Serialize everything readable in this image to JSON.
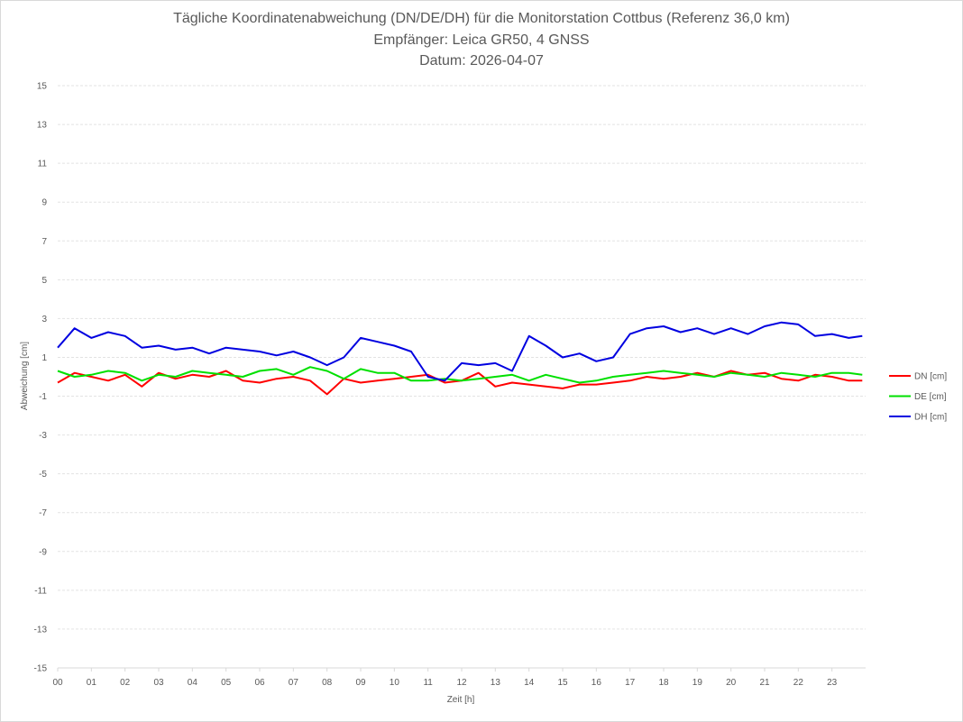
{
  "chart_data": {
    "type": "line",
    "title": "Tägliche Koordinatenabweichung (DN/DE/DH) für die Monitorstation Cottbus (Referenz 36,0 km)",
    "subtitle": "Empfänger: Leica GR50, 4 GNSS",
    "date_line": "Datum: 2026-04-07",
    "xlabel": "Zeit [h]",
    "ylabel": "Abweichung [cm]",
    "xlim": [
      0,
      24
    ],
    "ylim": [
      -15,
      15
    ],
    "x_ticks": [
      "00",
      "01",
      "02",
      "03",
      "04",
      "05",
      "06",
      "07",
      "08",
      "09",
      "10",
      "11",
      "12",
      "13",
      "14",
      "15",
      "16",
      "17",
      "18",
      "19",
      "20",
      "21",
      "22",
      "23"
    ],
    "y_ticks": [
      15,
      13,
      11,
      9,
      7,
      5,
      3,
      1,
      -1,
      -3,
      -5,
      -7,
      -9,
      -11,
      -13,
      -15
    ],
    "grid": true,
    "legend_position": "right",
    "x": [
      0,
      0.5,
      1,
      1.5,
      2,
      2.5,
      3,
      3.5,
      4,
      4.5,
      5,
      5.5,
      6,
      6.5,
      7,
      7.5,
      8,
      8.5,
      9,
      9.5,
      10,
      10.5,
      11,
      11.5,
      12,
      12.5,
      13,
      13.5,
      14,
      14.5,
      15,
      15.5,
      16,
      16.5,
      17,
      17.5,
      18,
      18.5,
      19,
      19.5,
      20,
      20.5,
      21,
      21.5,
      22,
      22.5,
      23,
      23.5,
      23.9
    ],
    "series": [
      {
        "name": "DN [cm]",
        "color": "#ff0000",
        "values": [
          -0.3,
          0.2,
          0.0,
          -0.2,
          0.1,
          -0.5,
          0.2,
          -0.1,
          0.1,
          0.0,
          0.3,
          -0.2,
          -0.3,
          -0.1,
          0.0,
          -0.2,
          -0.9,
          -0.1,
          -0.3,
          -0.2,
          -0.1,
          0.0,
          0.1,
          -0.3,
          -0.2,
          0.2,
          -0.5,
          -0.3,
          -0.4,
          -0.5,
          -0.6,
          -0.4,
          -0.4,
          -0.3,
          -0.2,
          0.0,
          -0.1,
          0.0,
          0.2,
          0.0,
          0.3,
          0.1,
          0.2,
          -0.1,
          -0.2,
          0.1,
          0.0,
          -0.2,
          -0.2
        ]
      },
      {
        "name": "DE [cm]",
        "color": "#00e000",
        "values": [
          0.3,
          0.0,
          0.1,
          0.3,
          0.2,
          -0.2,
          0.1,
          0.0,
          0.3,
          0.2,
          0.1,
          0.0,
          0.3,
          0.4,
          0.1,
          0.5,
          0.3,
          -0.1,
          0.4,
          0.2,
          0.2,
          -0.2,
          -0.2,
          -0.1,
          -0.2,
          -0.1,
          0.0,
          0.1,
          -0.2,
          0.1,
          -0.1,
          -0.3,
          -0.2,
          0.0,
          0.1,
          0.2,
          0.3,
          0.2,
          0.1,
          0.0,
          0.2,
          0.1,
          0.0,
          0.2,
          0.1,
          0.0,
          0.2,
          0.2,
          0.1
        ]
      },
      {
        "name": "DH [cm]",
        "color": "#0000e0",
        "values": [
          1.5,
          2.5,
          2.0,
          2.3,
          2.1,
          1.5,
          1.6,
          1.4,
          1.5,
          1.2,
          1.5,
          1.4,
          1.3,
          1.1,
          1.3,
          1.0,
          0.6,
          1.0,
          2.0,
          1.8,
          1.6,
          1.3,
          0.0,
          -0.2,
          0.7,
          0.6,
          0.7,
          0.3,
          2.1,
          1.6,
          1.0,
          1.2,
          0.8,
          1.0,
          2.2,
          2.5,
          2.6,
          2.3,
          2.5,
          2.2,
          2.5,
          2.2,
          2.6,
          2.8,
          2.7,
          2.1,
          2.2,
          2.0,
          2.1
        ]
      }
    ]
  }
}
